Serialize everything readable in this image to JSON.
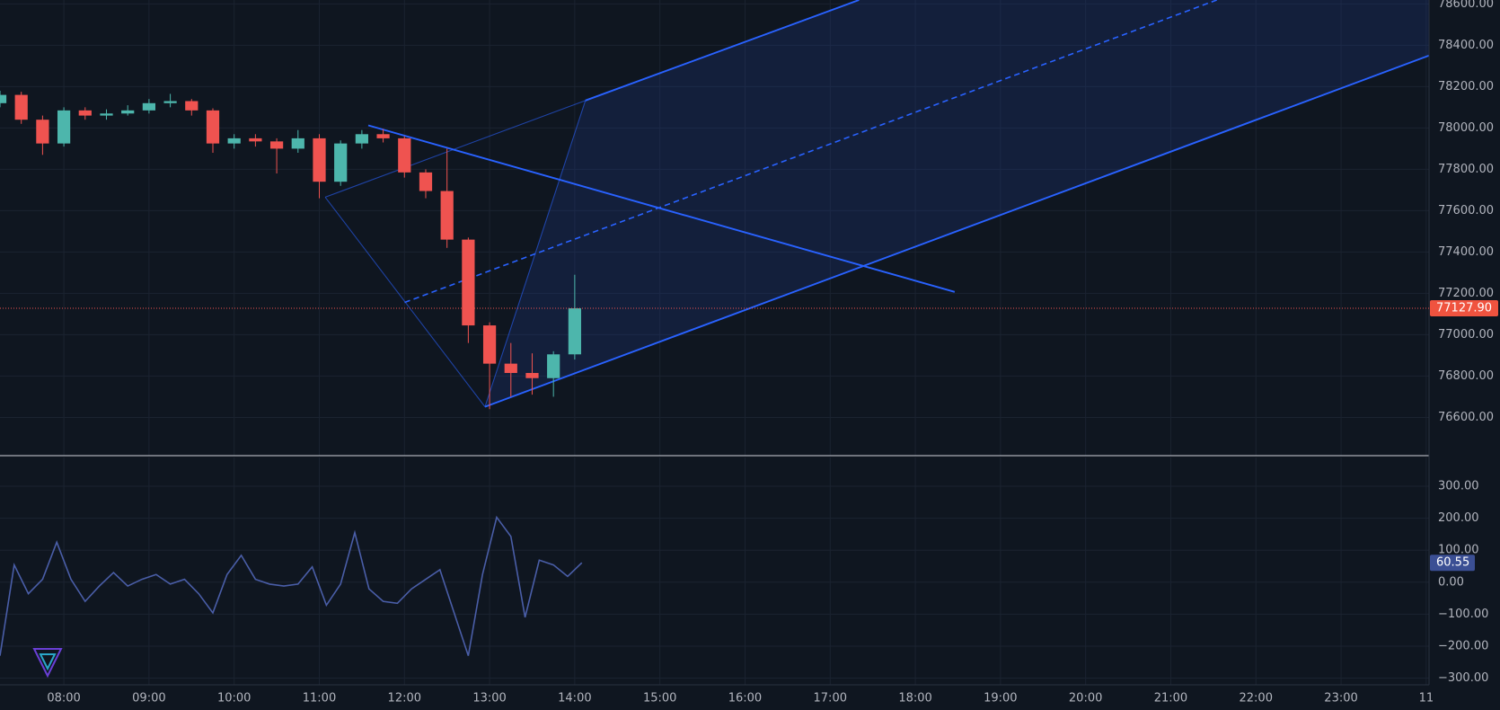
{
  "chart_data": [
    {
      "type": "candlestick",
      "up_color": "#4db6ac",
      "down_color": "#ef5350",
      "grid": true,
      "x": [
        435,
        450,
        465,
        480,
        495,
        510,
        525,
        540,
        555,
        570,
        585,
        600,
        615,
        630,
        645,
        660,
        675,
        690,
        705,
        720,
        735,
        750,
        765,
        780,
        795,
        810,
        825,
        840
      ],
      "open": [
        78120,
        78160,
        78040,
        77925,
        78085,
        78060,
        78070,
        78085,
        78120,
        78130,
        78085,
        77925,
        77950,
        77935,
        77900,
        77950,
        77740,
        77925,
        77970,
        77950,
        77785,
        77695,
        77460,
        77045,
        76860,
        76815,
        76790,
        76905
      ],
      "high": [
        78180,
        78175,
        78060,
        78100,
        78100,
        78090,
        78110,
        78140,
        78165,
        78140,
        78095,
        77970,
        77970,
        77950,
        77990,
        77970,
        77940,
        77990,
        77995,
        77960,
        77800,
        77900,
        77470,
        77060,
        76960,
        76910,
        76920,
        77290
      ],
      "low": [
        78100,
        78020,
        77870,
        77910,
        78040,
        78040,
        78060,
        78070,
        78100,
        78060,
        77880,
        77900,
        77910,
        77780,
        77880,
        77660,
        77720,
        77900,
        77930,
        77760,
        77660,
        77420,
        76960,
        76640,
        76700,
        76710,
        76700,
        76880
      ],
      "close": [
        78160,
        78040,
        77925,
        78085,
        78060,
        78070,
        78085,
        78120,
        78130,
        78085,
        77925,
        77950,
        77935,
        77900,
        77950,
        77740,
        77925,
        77970,
        77950,
        77785,
        77695,
        77460,
        77045,
        76860,
        76815,
        76790,
        76905,
        77127.9
      ],
      "last_price": {
        "value": 77127.9,
        "label": "77127.90"
      },
      "xlim": [
        435,
        1442
      ],
      "ylim": [
        76415,
        78619
      ],
      "yticks": [
        {
          "value": 76600,
          "label": "76600.00"
        },
        {
          "value": 76800,
          "label": "76800.00"
        },
        {
          "value": 77000,
          "label": "77000.00"
        },
        {
          "value": 77200,
          "label": "77200.00"
        },
        {
          "value": 77400,
          "label": "77400.00"
        },
        {
          "value": 77600,
          "label": "77600.00"
        },
        {
          "value": 77800,
          "label": "77800.00"
        },
        {
          "value": 78000,
          "label": "78000.00"
        },
        {
          "value": 78200,
          "label": "78200.00"
        },
        {
          "value": 78400,
          "label": "78400.00"
        },
        {
          "value": 78600,
          "label": "78600.00"
        }
      ]
    },
    {
      "type": "line",
      "color": "#4a5ea8",
      "grid": true,
      "x": [
        435,
        445,
        455,
        465,
        475,
        485,
        495,
        505,
        515,
        525,
        535,
        545,
        555,
        565,
        575,
        585,
        595,
        605,
        615,
        625,
        635,
        645,
        655,
        665,
        675,
        685,
        695,
        705,
        715,
        725,
        735,
        745,
        755,
        765,
        775,
        785,
        795,
        805,
        815,
        825,
        835,
        845
      ],
      "values": [
        -230,
        54,
        -36,
        9,
        125,
        9,
        -60,
        -12,
        30,
        -12,
        9,
        24,
        -6,
        9,
        -36,
        -96,
        24,
        84,
        9,
        -6,
        -12,
        -6,
        48,
        -72,
        -6,
        155,
        -21,
        -60,
        -66,
        -21,
        9,
        39,
        -96,
        -230,
        24,
        203,
        143,
        -110,
        69,
        54,
        18,
        60.55
      ],
      "xlim": [
        435,
        1442
      ],
      "ylim": [
        -321,
        390
      ],
      "yticks": [
        {
          "value": 300,
          "label": "300.00"
        },
        {
          "value": 200,
          "label": "200.00"
        },
        {
          "value": 100,
          "label": "100.00"
        },
        {
          "value": 0,
          "label": "0.00"
        },
        {
          "value": -100,
          "label": "−100.00"
        },
        {
          "value": -200,
          "label": "−200.00"
        },
        {
          "value": -300,
          "label": "−300.00"
        }
      ],
      "xticks": [
        {
          "value": 480,
          "label": "08:00"
        },
        {
          "value": 540,
          "label": "09:00"
        },
        {
          "value": 600,
          "label": "10:00"
        },
        {
          "value": 660,
          "label": "11:00"
        },
        {
          "value": 720,
          "label": "12:00"
        },
        {
          "value": 780,
          "label": "13:00"
        },
        {
          "value": 840,
          "label": "14:00"
        },
        {
          "value": 900,
          "label": "15:00"
        },
        {
          "value": 960,
          "label": "16:00"
        },
        {
          "value": 1020,
          "label": "17:00"
        },
        {
          "value": 1080,
          "label": "18:00"
        },
        {
          "value": 1140,
          "label": "19:00"
        },
        {
          "value": 1200,
          "label": "20:00"
        },
        {
          "value": 1260,
          "label": "21:00"
        },
        {
          "value": 1320,
          "label": "22:00"
        },
        {
          "value": 1380,
          "label": "23:00"
        },
        {
          "value": 1440,
          "label": "11"
        }
      ]
    }
  ]
}
